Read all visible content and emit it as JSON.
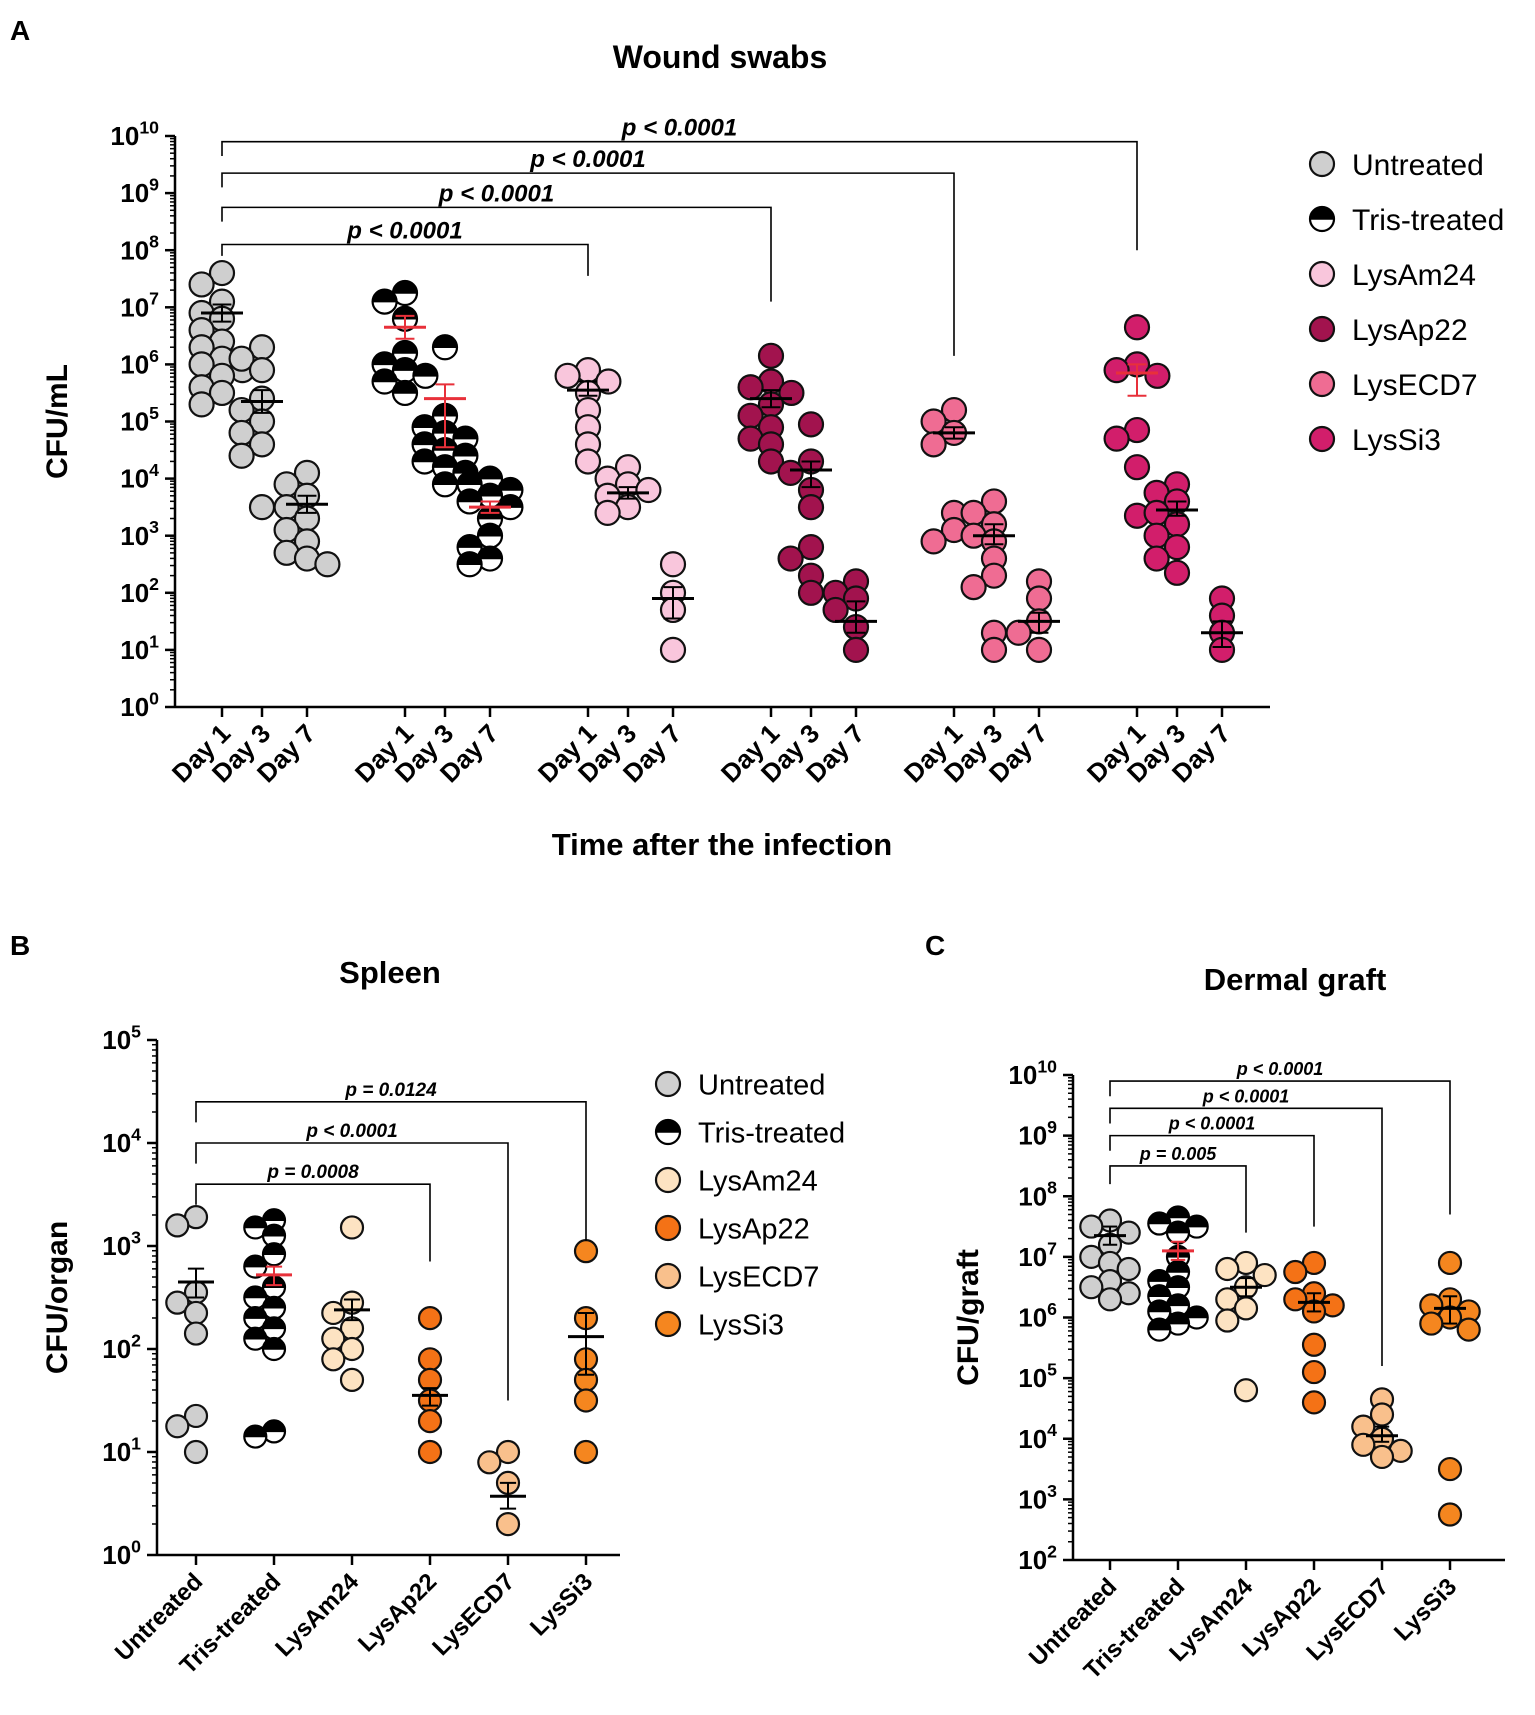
{
  "figure": {
    "panel_letters": [
      "A",
      "B",
      "C"
    ],
    "colors": {
      "untreated": "#cfcfcf",
      "tris": "#000000",
      "lysam24_A": "#f9c6dc",
      "lysap22_A": "#a2134e",
      "lysecd7_A": "#ef6c93",
      "lyssi3_A": "#d21e6b",
      "lysam24_BC": "#fde3c2",
      "lysap22_BC": "#f47216",
      "lysecd7_BC": "#f9c08c",
      "lyssi3_BC": "#f5861f",
      "mean_red": "#e8303a",
      "mean_black": "#000000"
    }
  },
  "chart_data": [
    {
      "id": "A",
      "type": "scatter",
      "title": "Wound swabs",
      "xlabel": "Time after the infection",
      "ylabel": "CFU/mL",
      "yscale": "log",
      "ylim": [
        0,
        10
      ],
      "ytick_exponents": [
        0,
        1,
        2,
        3,
        4,
        5,
        6,
        7,
        8,
        9,
        10
      ],
      "tick_base": "10",
      "timepoints": [
        "Day 1",
        "Day 3",
        "Day 7"
      ],
      "legend": [
        "Untreated",
        "Tris-treated",
        "LysAm24",
        "LysAp22",
        "LysECD7",
        "LysSi3"
      ],
      "groups": [
        {
          "name": "Untreated",
          "fill": "untreated",
          "style": "solid",
          "days": [
            {
              "points": [
                7.6,
                7.4,
                7.1,
                6.9,
                6.8,
                6.6,
                6.4,
                6.3,
                6.1,
                6.0,
                5.9,
                5.8,
                5.6,
                5.5,
                5.3
              ],
              "mean": 6.9,
              "err": [
                6.75,
                7.05
              ],
              "mean_color": "mean_black"
            },
            {
              "points": [
                6.3,
                6.1,
                5.9,
                5.4,
                5.2,
                5.0,
                4.8,
                4.6,
                4.4,
                3.5
              ],
              "mean": 5.35,
              "err": [
                5.15,
                5.55
              ],
              "mean_color": "mean_black"
            },
            {
              "points": [
                4.1,
                3.9,
                3.7,
                3.5,
                3.3,
                3.1,
                2.9,
                2.7,
                2.6,
                2.5
              ],
              "mean": 3.55,
              "err": [
                3.4,
                3.7
              ],
              "mean_color": "mean_black"
            }
          ]
        },
        {
          "name": "Tris-treated",
          "fill": "tris",
          "style": "half",
          "days": [
            {
              "points": [
                7.25,
                7.1,
                6.8,
                6.2,
                6.0,
                5.9,
                5.8,
                5.7,
                5.5
              ],
              "mean": 6.65,
              "err": [
                6.45,
                6.85
              ],
              "mean_color": "mean_red"
            },
            {
              "points": [
                6.3,
                5.1,
                4.9,
                4.8,
                4.7,
                4.6,
                4.5,
                4.4,
                4.3,
                4.2,
                4.1,
                3.9
              ],
              "mean": 5.4,
              "err": [
                4.55,
                5.65
              ],
              "mean_color": "mean_red"
            },
            {
              "points": [
                4.0,
                3.9,
                3.8,
                3.7,
                3.6,
                3.5,
                3.3,
                3.0,
                2.8,
                2.6,
                2.5
              ],
              "mean": 3.5,
              "err": [
                3.4,
                3.6
              ],
              "mean_color": "mean_red"
            }
          ]
        },
        {
          "name": "LysAm24",
          "fill": "lysam24_A",
          "style": "solid",
          "days": [
            {
              "points": [
                5.9,
                5.8,
                5.7,
                5.5,
                5.2,
                4.9,
                4.6,
                4.3
              ],
              "mean": 5.55,
              "err": [
                5.45,
                5.7
              ],
              "mean_color": "mean_black"
            },
            {
              "points": [
                4.2,
                4.0,
                3.9,
                3.8,
                3.7,
                3.5,
                3.4
              ],
              "mean": 3.75,
              "err": [
                3.65,
                3.85
              ],
              "mean_color": "mean_black"
            },
            {
              "points": [
                2.5,
                2.0,
                1.7,
                1.0
              ],
              "mean": 1.9,
              "err": [
                1.55,
                2.1
              ],
              "mean_color": "mean_black"
            }
          ]
        },
        {
          "name": "LysAp22",
          "fill": "lysap22_A",
          "style": "solid",
          "days": [
            {
              "points": [
                6.15,
                5.7,
                5.6,
                5.5,
                5.3,
                5.1,
                4.9,
                4.7,
                4.6,
                4.3
              ],
              "mean": 5.4,
              "err": [
                5.25,
                5.55
              ],
              "mean_color": "mean_black"
            },
            {
              "points": [
                4.95,
                4.3,
                4.1,
                3.8,
                3.5,
                2.8,
                2.6,
                2.3,
                2.0
              ],
              "mean": 4.15,
              "err": [
                3.85,
                4.3
              ],
              "mean_color": "mean_black"
            },
            {
              "points": [
                2.2,
                2.0,
                1.9,
                1.7,
                1.4,
                1.0
              ],
              "mean": 1.5,
              "err": [
                1.3,
                1.85
              ],
              "mean_color": "mean_black"
            }
          ]
        },
        {
          "name": "LysECD7",
          "fill": "lysecd7_A",
          "style": "solid",
          "days": [
            {
              "points": [
                5.2,
                5.0,
                4.8,
                4.6,
                3.4,
                3.1,
                2.9
              ],
              "mean": 4.8,
              "err": [
                4.7,
                4.9
              ],
              "mean_color": "mean_black"
            },
            {
              "points": [
                3.6,
                3.4,
                3.2,
                3.0,
                2.9,
                2.6,
                2.3,
                2.1,
                1.3,
                1.0
              ],
              "mean": 3.0,
              "err": [
                2.85,
                3.2
              ],
              "mean_color": "mean_black"
            },
            {
              "points": [
                2.2,
                1.9,
                1.5,
                1.3,
                1.0
              ],
              "mean": 1.5,
              "err": [
                1.3,
                1.65
              ],
              "mean_color": "mean_black"
            }
          ]
        },
        {
          "name": "LysSi3",
          "fill": "lyssi3_A",
          "style": "solid",
          "days": [
            {
              "points": [
                6.65,
                6.0,
                5.9,
                5.8,
                4.85,
                4.7,
                4.2,
                3.35
              ],
              "mean": 5.85,
              "err": [
                5.45,
                6.0
              ],
              "mean_color": "mean_red"
            },
            {
              "points": [
                3.9,
                3.75,
                3.6,
                3.4,
                3.2,
                3.0,
                2.8,
                2.6,
                2.35
              ],
              "mean": 3.45,
              "err": [
                3.35,
                3.6
              ],
              "mean_color": "mean_black"
            },
            {
              "points": [
                1.9,
                1.6,
                1.3,
                1.0
              ],
              "mean": 1.3,
              "err": [
                1.05,
                1.5
              ],
              "mean_color": "mean_black"
            }
          ]
        }
      ],
      "comparisons": [
        {
          "from_group": 0,
          "to_group": 2,
          "label": "p < 0.0001",
          "top": 8.1,
          "to_tip": 7.55,
          "from_tip": 7.9
        },
        {
          "from_group": 0,
          "to_group": 3,
          "label": "p < 0.0001",
          "top": 8.75,
          "to_tip": 7.1,
          "from_tip": 8.5
        },
        {
          "from_group": 0,
          "to_group": 4,
          "label": "p < 0.0001",
          "top": 9.35,
          "to_tip": 6.15,
          "from_tip": 9.1
        },
        {
          "from_group": 0,
          "to_group": 5,
          "label": "p < 0.0001",
          "top": 9.9,
          "to_tip": 8.0,
          "from_tip": 9.65
        }
      ]
    },
    {
      "id": "B",
      "type": "scatter",
      "title": "Spleen",
      "xlabel": "",
      "ylabel": "CFU/organ",
      "yscale": "log",
      "ylim": [
        0,
        5
      ],
      "ytick_exponents": [
        0,
        1,
        2,
        3,
        4,
        5
      ],
      "tick_base": "10",
      "categories": [
        "Untreated",
        "Tris-treated",
        "LysAm24",
        "LysAp22",
        "LysECD7",
        "LysSi3"
      ],
      "legend": [
        "Untreated",
        "Tris-treated",
        "LysAm24",
        "LysAp22",
        "LysECD7",
        "LysSi3"
      ],
      "groups": [
        {
          "name": "Untreated",
          "fill": "untreated",
          "style": "solid",
          "points": [
            3.28,
            3.2,
            2.55,
            2.45,
            2.35,
            2.15,
            1.35,
            1.25,
            1.0
          ],
          "mean": 2.65,
          "err": [
            2.5,
            2.78
          ],
          "mean_color": "mean_black"
        },
        {
          "name": "Tris-treated",
          "fill": "tris",
          "style": "half",
          "points": [
            3.25,
            3.18,
            3.1,
            2.92,
            2.8,
            2.6,
            2.5,
            2.4,
            2.3,
            2.2,
            2.1,
            2.0,
            1.2,
            1.15
          ],
          "mean": 2.72,
          "err": [
            2.62,
            2.8
          ],
          "mean_color": "mean_red"
        },
        {
          "name": "LysAm24",
          "fill": "lysam24_BC",
          "style": "solid",
          "points": [
            3.18,
            2.45,
            2.35,
            2.2,
            2.1,
            2.0,
            1.9,
            1.7
          ],
          "mean": 2.38,
          "err": [
            2.28,
            2.48
          ],
          "mean_color": "mean_black"
        },
        {
          "name": "LysAp22",
          "fill": "lysap22_BC",
          "style": "solid",
          "points": [
            2.3,
            1.9,
            1.7,
            1.5,
            1.3,
            1.0
          ],
          "mean": 1.55,
          "err": [
            1.45,
            1.62
          ],
          "mean_color": "mean_black"
        },
        {
          "name": "LysECD7",
          "fill": "lysecd7_BC",
          "style": "solid",
          "points": [
            1.0,
            0.9,
            0.7,
            0.3
          ],
          "mean": 0.57,
          "err": [
            0.45,
            0.7
          ],
          "mean_color": "mean_black"
        },
        {
          "name": "LysSi3",
          "fill": "lyssi3_BC",
          "style": "solid",
          "points": [
            2.95,
            2.3,
            1.9,
            1.7,
            1.5,
            1.0
          ],
          "mean": 2.12,
          "err": [
            1.75,
            2.35
          ],
          "mean_color": "mean_black"
        }
      ],
      "comparisons": [
        {
          "from_group": 0,
          "to_group": 3,
          "label": "p = 0.0008",
          "top": 3.6,
          "to_tip": 2.85,
          "from_tip": 3.4
        },
        {
          "from_group": 0,
          "to_group": 4,
          "label": "p < 0.0001",
          "top": 4.0,
          "to_tip": 1.5,
          "from_tip": 3.8
        },
        {
          "from_group": 0,
          "to_group": 5,
          "label": "p = 0.0124",
          "top": 4.4,
          "to_tip": 3.05,
          "from_tip": 4.2
        }
      ]
    },
    {
      "id": "C",
      "type": "scatter",
      "title": "Dermal graft",
      "xlabel": "",
      "ylabel": "CFU/graft",
      "yscale": "log",
      "ylim": [
        2,
        10
      ],
      "ytick_exponents": [
        2,
        3,
        4,
        5,
        6,
        7,
        8,
        9,
        10
      ],
      "tick_base": "10",
      "categories": [
        "Untreated",
        "Tris-treated",
        "LysAm24",
        "LysAp22",
        "LysECD7",
        "LysSi3"
      ],
      "groups": [
        {
          "name": "Untreated",
          "fill": "untreated",
          "style": "solid",
          "points": [
            7.6,
            7.5,
            7.4,
            7.2,
            7.0,
            6.9,
            6.8,
            6.6,
            6.5,
            6.4,
            6.3
          ],
          "mean": 7.35,
          "err": [
            7.2,
            7.5
          ],
          "mean_color": "mean_black"
        },
        {
          "name": "Tris-treated",
          "fill": "tris",
          "style": "half",
          "points": [
            7.65,
            7.55,
            7.5,
            7.4,
            7.0,
            6.75,
            6.6,
            6.5,
            6.35,
            6.2,
            6.1,
            6.0,
            5.9,
            5.8
          ],
          "mean": 7.1,
          "err": [
            6.95,
            7.25
          ],
          "mean_color": "mean_red"
        },
        {
          "name": "LysAm24",
          "fill": "lysam24_BC",
          "style": "solid",
          "points": [
            6.9,
            6.8,
            6.7,
            6.5,
            6.3,
            6.15,
            5.95,
            4.8
          ],
          "mean": 6.5,
          "err": [
            6.35,
            6.65
          ],
          "mean_color": "mean_black"
        },
        {
          "name": "LysAp22",
          "fill": "lysap22_BC",
          "style": "solid",
          "points": [
            6.9,
            6.75,
            6.4,
            6.3,
            6.2,
            6.1,
            5.55,
            5.1,
            4.6
          ],
          "mean": 6.25,
          "err": [
            6.1,
            6.4
          ],
          "mean_color": "mean_black"
        },
        {
          "name": "LysECD7",
          "fill": "lysecd7_BC",
          "style": "solid",
          "points": [
            4.65,
            4.4,
            4.2,
            4.0,
            3.9,
            3.8,
            3.7
          ],
          "mean": 4.05,
          "err": [
            3.95,
            4.2
          ],
          "mean_color": "mean_black"
        },
        {
          "name": "LysSi3",
          "fill": "lyssi3_BC",
          "style": "solid",
          "points": [
            6.9,
            6.3,
            6.2,
            6.1,
            6.0,
            5.9,
            5.8,
            3.5,
            2.75
          ],
          "mean": 6.15,
          "err": [
            5.9,
            6.35
          ],
          "mean_color": "mean_black"
        }
      ],
      "comparisons": [
        {
          "from_group": 0,
          "to_group": 2,
          "label": "p = 0.005",
          "top": 8.5,
          "to_tip": 7.4,
          "from_tip": 8.2
        },
        {
          "from_group": 0,
          "to_group": 3,
          "label": "p < 0.0001",
          "top": 9.0,
          "to_tip": 7.5,
          "from_tip": 8.75
        },
        {
          "from_group": 0,
          "to_group": 4,
          "label": "p < 0.0001",
          "top": 9.45,
          "to_tip": 5.2,
          "from_tip": 9.2
        },
        {
          "from_group": 0,
          "to_group": 5,
          "label": "p < 0.0001",
          "top": 9.9,
          "to_tip": 7.7,
          "from_tip": 9.65
        }
      ]
    }
  ]
}
